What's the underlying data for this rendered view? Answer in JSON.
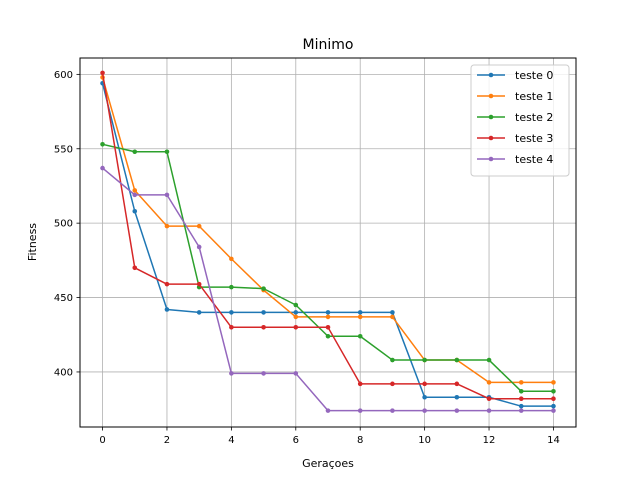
{
  "chart_data": {
    "type": "line",
    "title": "Minimo",
    "xlabel": "Geraçoes",
    "ylabel": "Fitness",
    "xlim": [
      -0.7,
      14.7
    ],
    "ylim": [
      363,
      611
    ],
    "xticks": [
      0,
      2,
      4,
      6,
      8,
      10,
      12,
      14
    ],
    "yticks": [
      400,
      450,
      500,
      550,
      600
    ],
    "grid": true,
    "legend_position": "top-right",
    "x": [
      0,
      1,
      2,
      3,
      4,
      5,
      6,
      7,
      8,
      9,
      10,
      11,
      12,
      13,
      14
    ],
    "series": [
      {
        "name": "teste 0",
        "color": "#1f77b4",
        "values": [
          594,
          508,
          442,
          440,
          440,
          440,
          440,
          440,
          440,
          440,
          383,
          383,
          383,
          377,
          377
        ]
      },
      {
        "name": "teste 1",
        "color": "#ff7f0e",
        "values": [
          598,
          522,
          498,
          498,
          476,
          455,
          437,
          437,
          437,
          437,
          408,
          408,
          393,
          393,
          393
        ]
      },
      {
        "name": "teste 2",
        "color": "#2ca02c",
        "values": [
          553,
          548,
          548,
          457,
          457,
          456,
          445,
          424,
          424,
          408,
          408,
          408,
          408,
          387,
          387
        ]
      },
      {
        "name": "teste 3",
        "color": "#d62728",
        "values": [
          601,
          470,
          459,
          459,
          430,
          430,
          430,
          430,
          392,
          392,
          392,
          392,
          382,
          382,
          382
        ]
      },
      {
        "name": "teste 4",
        "color": "#9467bd",
        "values": [
          537,
          519,
          519,
          484,
          399,
          399,
          399,
          374,
          374,
          374,
          374,
          374,
          374,
          374,
          374
        ]
      }
    ]
  }
}
